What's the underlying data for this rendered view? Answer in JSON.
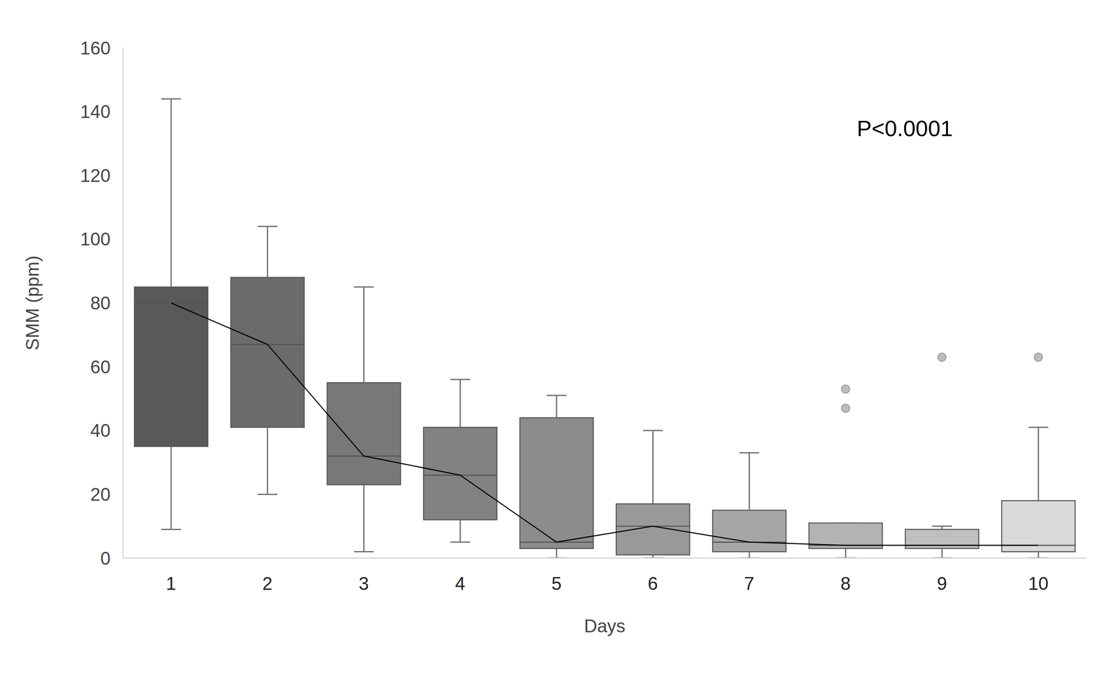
{
  "chart_data": {
    "type": "box",
    "x_label": "Days",
    "y_label": "SMM (ppm)",
    "annotations": [
      "P<0.0001"
    ],
    "categories": [
      "1",
      "2",
      "3",
      "4",
      "5",
      "6",
      "7",
      "8",
      "9",
      "10"
    ],
    "min": [
      9,
      20,
      2,
      5,
      0,
      0,
      0,
      0,
      0,
      0
    ],
    "q1": [
      35,
      41,
      23,
      12,
      3,
      1,
      2,
      3,
      3,
      2
    ],
    "median": [
      80,
      67,
      32,
      26,
      5,
      10,
      5,
      4,
      4,
      4
    ],
    "q3": [
      85,
      88,
      55,
      41,
      44,
      17,
      15,
      11,
      9,
      18
    ],
    "max": [
      144,
      104,
      85,
      56,
      51,
      40,
      33,
      11,
      10,
      41
    ],
    "outliers": [
      [],
      [],
      [],
      [],
      [],
      [],
      [],
      [
        53,
        47
      ],
      [
        63
      ],
      [
        63
      ]
    ],
    "colors": [
      "#595959",
      "#6b6b6b",
      "#787878",
      "#828282",
      "#8c8c8c",
      "#999999",
      "#a6a6a6",
      "#b3b3b3",
      "#bfbfbf",
      "#d9d9d9"
    ],
    "ylim": [
      0,
      160
    ],
    "yticks": [
      0,
      20,
      40,
      60,
      80,
      100,
      120,
      140,
      160
    ],
    "grid": false
  }
}
